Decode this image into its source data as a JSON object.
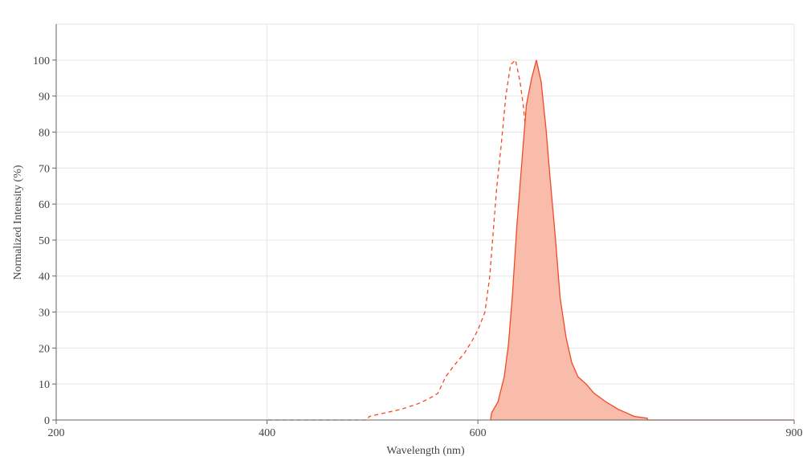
{
  "chart_data": {
    "type": "line",
    "x_label": "Wavelength (nm)",
    "y_label": "Normalized Intensity (%)",
    "xlim": [
      200,
      900
    ],
    "xticks": [
      200,
      400,
      600,
      900
    ],
    "ylim": [
      0,
      110
    ],
    "yticks": [
      0,
      10,
      20,
      30,
      40,
      50,
      60,
      70,
      80,
      90,
      100
    ],
    "grid": true,
    "series": [
      {
        "color": "#f04a24",
        "dashed": true,
        "filled": false,
        "x": [
          401,
          495,
          497,
          512,
          527.5,
          543,
          554,
          562,
          569.4,
          577,
          587,
          594.5,
          600,
          606.7,
          611.3,
          615,
          618,
          622,
          626.5,
          631,
          635.7,
          640,
          643,
          647,
          651,
          655,
          658.5,
          661.6,
          665,
          667.7,
          668
        ],
        "values": [
          0,
          0,
          1,
          2,
          3,
          4.5,
          6,
          7.4,
          12,
          15,
          18.5,
          22,
          25,
          30,
          40,
          54,
          65,
          76,
          90,
          98.7,
          100,
          94,
          87.5,
          76,
          63,
          50,
          32,
          23,
          14,
          5,
          0
        ]
      },
      {
        "color": "#f04a24",
        "dashed": false,
        "filled": true,
        "fill_color": "#f9bcab",
        "x": [
          612,
          613,
          619,
          625,
          629,
          632.6,
          637,
          641.8,
          646,
          651,
          655.5,
          660,
          664.6,
          668.4,
          673.7,
          678,
          683.6,
          689,
          695,
          702.7,
          710,
          721.7,
          733,
          748.4,
          760.6,
          761,
          900
        ],
        "values": [
          0,
          2,
          5,
          12,
          21,
          34,
          54,
          72,
          87.5,
          95,
          100,
          94,
          81,
          67.5,
          50,
          34,
          23,
          16,
          12,
          10,
          7.5,
          5,
          3,
          1,
          0.5,
          0,
          0
        ]
      }
    ]
  }
}
